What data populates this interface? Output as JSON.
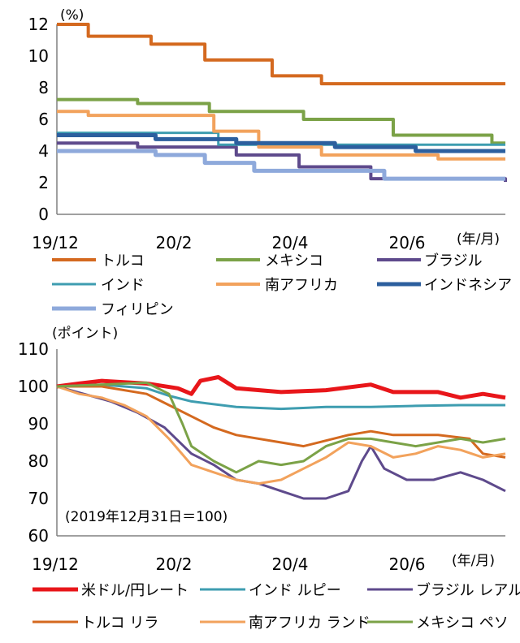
{
  "chart_data": [
    {
      "type": "line",
      "ylim": [
        0,
        12
      ],
      "yticks": [
        0,
        2,
        4,
        6,
        8,
        10,
        12
      ],
      "y_unit": "(%)",
      "x_unit": "(年/月)",
      "x_ticks": [
        "19/12",
        "20/2",
        "20/4",
        "20/6"
      ],
      "grid": false,
      "legend": "bottom",
      "series": [
        {
          "name": "トルコ",
          "color": "#D4691F",
          "width": 4,
          "steps": [
            [
              0,
              12
            ],
            [
              0.07,
              11.25
            ],
            [
              0.21,
              10.75
            ],
            [
              0.33,
              9.75
            ],
            [
              0.48,
              8.75
            ],
            [
              0.59,
              8.25
            ],
            [
              1,
              8.25
            ]
          ]
        },
        {
          "name": "メキシコ",
          "color": "#7BA247",
          "width": 4,
          "steps": [
            [
              0,
              7.25
            ],
            [
              0.18,
              7.0
            ],
            [
              0.34,
              6.5
            ],
            [
              0.55,
              6.0
            ],
            [
              0.75,
              5.0
            ],
            [
              0.97,
              4.5
            ],
            [
              1,
              4.5
            ]
          ]
        },
        {
          "name": "ブラジル",
          "color": "#5E4A8C",
          "width": 4,
          "steps": [
            [
              0,
              4.5
            ],
            [
              0.18,
              4.25
            ],
            [
              0.4,
              3.75
            ],
            [
              0.54,
              3.0
            ],
            [
              0.7,
              2.25
            ],
            [
              1,
              2.05
            ]
          ]
        },
        {
          "name": "インド",
          "color": "#3E9DB0",
          "width": 3,
          "steps": [
            [
              0,
              5.15
            ],
            [
              0.36,
              4.4
            ],
            [
              1,
              4.4
            ]
          ]
        },
        {
          "name": "南アフリカ",
          "color": "#F2A25C",
          "width": 4,
          "steps": [
            [
              0,
              6.5
            ],
            [
              0.07,
              6.25
            ],
            [
              0.35,
              5.25
            ],
            [
              0.45,
              4.25
            ],
            [
              0.59,
              3.75
            ],
            [
              0.85,
              3.5
            ],
            [
              1,
              3.5
            ]
          ]
        },
        {
          "name": "インドネシア",
          "color": "#2C5F9E",
          "width": 5,
          "steps": [
            [
              0,
              5.0
            ],
            [
              0.22,
              4.75
            ],
            [
              0.4,
              4.5
            ],
            [
              0.62,
              4.25
            ],
            [
              0.8,
              4.0
            ],
            [
              1,
              4.0
            ]
          ]
        },
        {
          "name": "フィリピン",
          "color": "#8EA9DB",
          "width": 5,
          "steps": [
            [
              0,
              4.0
            ],
            [
              0.22,
              3.75
            ],
            [
              0.33,
              3.25
            ],
            [
              0.44,
              2.75
            ],
            [
              0.73,
              2.25
            ],
            [
              1,
              2.25
            ]
          ]
        }
      ]
    },
    {
      "type": "line",
      "ylim": [
        60,
        110
      ],
      "yticks": [
        60,
        70,
        80,
        90,
        100,
        110
      ],
      "y_unit": "(ポイント)",
      "x_unit": "(年/月)",
      "x_ticks": [
        "19/12",
        "20/2",
        "20/4",
        "20/6"
      ],
      "grid": false,
      "legend": "bottom",
      "note": "(2019年12月31日＝100)",
      "series": [
        {
          "name": "米ドル/円レート",
          "color": "#E8161A",
          "width": 5,
          "points": [
            [
              0,
              100
            ],
            [
              0.05,
              100.8
            ],
            [
              0.1,
              101.5
            ],
            [
              0.2,
              100.8
            ],
            [
              0.27,
              99.5
            ],
            [
              0.3,
              98
            ],
            [
              0.32,
              101.5
            ],
            [
              0.36,
              102.5
            ],
            [
              0.4,
              99.5
            ],
            [
              0.5,
              98.5
            ],
            [
              0.6,
              99
            ],
            [
              0.7,
              100.5
            ],
            [
              0.75,
              98.5
            ],
            [
              0.85,
              98.5
            ],
            [
              0.9,
              97
            ],
            [
              0.95,
              98
            ],
            [
              1,
              97
            ]
          ]
        },
        {
          "name": "インド ルピー",
          "color": "#3E9DB0",
          "width": 3,
          "points": [
            [
              0,
              100
            ],
            [
              0.1,
              100.5
            ],
            [
              0.2,
              99.5
            ],
            [
              0.25,
              97.5
            ],
            [
              0.3,
              96
            ],
            [
              0.4,
              94.5
            ],
            [
              0.5,
              94
            ],
            [
              0.6,
              94.5
            ],
            [
              0.7,
              94.5
            ],
            [
              0.8,
              94.8
            ],
            [
              0.9,
              95
            ],
            [
              1,
              95
            ]
          ]
        },
        {
          "name": "ブラジル レアル",
          "color": "#5E4A8C",
          "width": 3,
          "points": [
            [
              0,
              100
            ],
            [
              0.06,
              98
            ],
            [
              0.12,
              96
            ],
            [
              0.18,
              93
            ],
            [
              0.24,
              89
            ],
            [
              0.3,
              82
            ],
            [
              0.35,
              79
            ],
            [
              0.4,
              75
            ],
            [
              0.45,
              74
            ],
            [
              0.5,
              72
            ],
            [
              0.55,
              70
            ],
            [
              0.6,
              70
            ],
            [
              0.65,
              72
            ],
            [
              0.68,
              80
            ],
            [
              0.7,
              84
            ],
            [
              0.73,
              78
            ],
            [
              0.78,
              75
            ],
            [
              0.84,
              75
            ],
            [
              0.9,
              77
            ],
            [
              0.95,
              75
            ],
            [
              1,
              72
            ]
          ]
        },
        {
          "name": "トルコ リラ",
          "color": "#D4691F",
          "width": 3,
          "points": [
            [
              0,
              100
            ],
            [
              0.1,
              100
            ],
            [
              0.2,
              98
            ],
            [
              0.25,
              95
            ],
            [
              0.3,
              92
            ],
            [
              0.35,
              89
            ],
            [
              0.4,
              87
            ],
            [
              0.5,
              85
            ],
            [
              0.55,
              84
            ],
            [
              0.6,
              85.5
            ],
            [
              0.65,
              87
            ],
            [
              0.7,
              88
            ],
            [
              0.75,
              87
            ],
            [
              0.85,
              87
            ],
            [
              0.92,
              86
            ],
            [
              0.95,
              82
            ],
            [
              1,
              81
            ]
          ]
        },
        {
          "name": "南アフリカ ランド",
          "color": "#F2A25C",
          "width": 3,
          "points": [
            [
              0,
              100
            ],
            [
              0.05,
              98
            ],
            [
              0.1,
              97
            ],
            [
              0.15,
              95
            ],
            [
              0.2,
              92
            ],
            [
              0.25,
              86
            ],
            [
              0.3,
              79
            ],
            [
              0.35,
              77
            ],
            [
              0.4,
              75
            ],
            [
              0.45,
              74
            ],
            [
              0.5,
              75
            ],
            [
              0.55,
              78
            ],
            [
              0.6,
              81
            ],
            [
              0.65,
              85
            ],
            [
              0.7,
              84
            ],
            [
              0.75,
              81
            ],
            [
              0.8,
              82
            ],
            [
              0.85,
              84
            ],
            [
              0.9,
              83
            ],
            [
              0.95,
              81
            ],
            [
              1,
              82
            ]
          ]
        },
        {
          "name": "メキシコ ペソ",
          "color": "#7BA247",
          "width": 3,
          "points": [
            [
              0,
              100
            ],
            [
              0.1,
              100.5
            ],
            [
              0.2,
              101
            ],
            [
              0.25,
              98
            ],
            [
              0.28,
              90
            ],
            [
              0.3,
              84
            ],
            [
              0.35,
              80
            ],
            [
              0.4,
              77
            ],
            [
              0.45,
              80
            ],
            [
              0.5,
              79
            ],
            [
              0.55,
              80
            ],
            [
              0.6,
              84
            ],
            [
              0.65,
              86
            ],
            [
              0.7,
              86
            ],
            [
              0.75,
              85
            ],
            [
              0.8,
              84
            ],
            [
              0.85,
              85
            ],
            [
              0.9,
              86
            ],
            [
              0.95,
              85
            ],
            [
              1,
              86
            ]
          ]
        }
      ]
    }
  ]
}
